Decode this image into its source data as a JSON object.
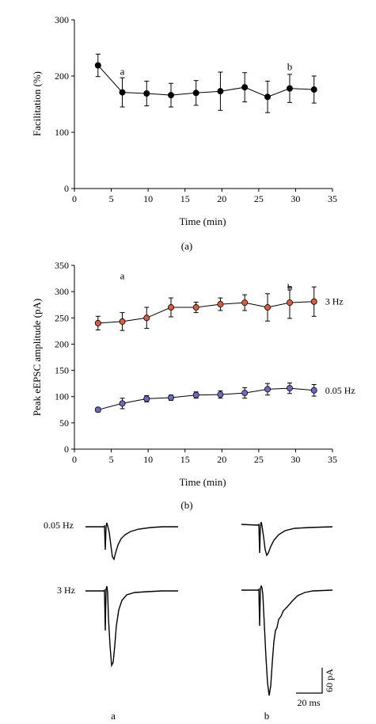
{
  "chart_data": [
    {
      "type": "scatter",
      "panel_label": "(a)",
      "xlabel": "Time (min)",
      "ylabel": "Facilitation (%)",
      "xlim": [
        0,
        35
      ],
      "ylim": [
        0,
        300
      ],
      "xticks": [
        "0",
        "5",
        "10",
        "15",
        "20",
        "25",
        "30",
        "35"
      ],
      "yticks": [
        "0",
        "100",
        "200",
        "300"
      ],
      "series": [
        {
          "color": "#000000",
          "points": [
            {
              "x": 3.2,
              "y": 219,
              "err": 20
            },
            {
              "x": 6.5,
              "y": 171,
              "err": 26
            },
            {
              "x": 9.8,
              "y": 169,
              "err": 22
            },
            {
              "x": 13.1,
              "y": 166,
              "err": 21
            },
            {
              "x": 16.5,
              "y": 170,
              "err": 22
            },
            {
              "x": 19.8,
              "y": 173,
              "err": 34
            },
            {
              "x": 23.1,
              "y": 180,
              "err": 26
            },
            {
              "x": 26.2,
              "y": 163,
              "err": 28
            },
            {
              "x": 29.2,
              "y": 178,
              "err": 25
            },
            {
              "x": 32.5,
              "y": 176,
              "err": 24
            }
          ]
        }
      ],
      "annotations": [
        {
          "text": "a",
          "x": 6.5,
          "y": 208
        },
        {
          "text": "b",
          "x": 29.2,
          "y": 216
        }
      ]
    },
    {
      "type": "scatter",
      "panel_label": "(b)",
      "xlabel": "Time (min)",
      "ylabel": "Peak eEPSC amplitude (pA)",
      "xlim": [
        0,
        35
      ],
      "ylim": [
        0,
        350
      ],
      "xticks": [
        "0",
        "5",
        "10",
        "15",
        "20",
        "25",
        "30",
        "35"
      ],
      "yticks": [
        "0",
        "50",
        "100",
        "150",
        "200",
        "250",
        "300",
        "350"
      ],
      "series": [
        {
          "name": "3 Hz",
          "color": "#e05a3a",
          "points": [
            {
              "x": 3.2,
              "y": 240,
              "err": 13
            },
            {
              "x": 6.5,
              "y": 243,
              "err": 17
            },
            {
              "x": 9.8,
              "y": 250,
              "err": 20
            },
            {
              "x": 13.1,
              "y": 270,
              "err": 18
            },
            {
              "x": 16.5,
              "y": 270,
              "err": 10
            },
            {
              "x": 19.8,
              "y": 276,
              "err": 12
            },
            {
              "x": 23.1,
              "y": 279,
              "err": 15
            },
            {
              "x": 26.2,
              "y": 270,
              "err": 26
            },
            {
              "x": 29.2,
              "y": 279,
              "err": 30
            },
            {
              "x": 32.5,
              "y": 281,
              "err": 28
            }
          ]
        },
        {
          "name": "0.05 Hz",
          "color": "#6a6ac8",
          "points": [
            {
              "x": 3.2,
              "y": 75,
              "err": 4
            },
            {
              "x": 6.5,
              "y": 87,
              "err": 10
            },
            {
              "x": 9.8,
              "y": 96,
              "err": 6
            },
            {
              "x": 13.1,
              "y": 98,
              "err": 5
            },
            {
              "x": 16.5,
              "y": 103,
              "err": 6
            },
            {
              "x": 19.8,
              "y": 104,
              "err": 7
            },
            {
              "x": 23.1,
              "y": 107,
              "err": 10
            },
            {
              "x": 26.2,
              "y": 114,
              "err": 11
            },
            {
              "x": 29.2,
              "y": 116,
              "err": 10
            },
            {
              "x": 32.5,
              "y": 112,
              "err": 11
            }
          ]
        }
      ],
      "annotations": [
        {
          "text": "a",
          "x": 6.5,
          "y": 330
        },
        {
          "text": "b",
          "x": 29.2,
          "y": 308
        }
      ]
    }
  ],
  "traces": {
    "row_labels": [
      "0.05 Hz",
      "3 Hz"
    ],
    "column_labels": [
      "a",
      "b"
    ],
    "scale_bar": {
      "time_label": "20 ms",
      "current_label": "60 pA"
    }
  },
  "colors": {
    "axis": "#000000",
    "marker_edge": "#000000"
  }
}
